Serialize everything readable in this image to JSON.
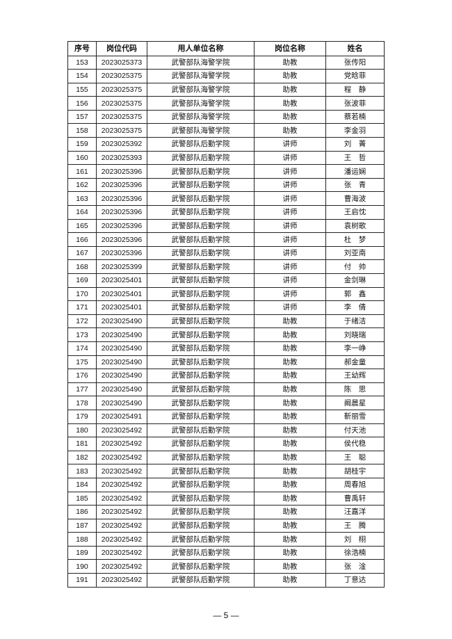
{
  "table": {
    "headers": [
      "序号",
      "岗位代码",
      "用人单位名称",
      "岗位名称",
      "姓名"
    ],
    "rows": [
      [
        "153",
        "2023025373",
        "武警部队海警学院",
        "助教",
        "张传阳"
      ],
      [
        "154",
        "2023025375",
        "武警部队海警学院",
        "助教",
        "党晗菲"
      ],
      [
        "155",
        "2023025375",
        "武警部队海警学院",
        "助教",
        "程　静"
      ],
      [
        "156",
        "2023025375",
        "武警部队海警学院",
        "助教",
        "张波菲"
      ],
      [
        "157",
        "2023025375",
        "武警部队海警学院",
        "助教",
        "蔡若楠"
      ],
      [
        "158",
        "2023025375",
        "武警部队海警学院",
        "助教",
        "李金羽"
      ],
      [
        "159",
        "2023025392",
        "武警部队后勤学院",
        "讲师",
        "刘　菁"
      ],
      [
        "160",
        "2023025393",
        "武警部队后勤学院",
        "讲师",
        "王　哲"
      ],
      [
        "161",
        "2023025396",
        "武警部队后勤学院",
        "讲师",
        "潘运娴"
      ],
      [
        "162",
        "2023025396",
        "武警部队后勤学院",
        "讲师",
        "张　青"
      ],
      [
        "163",
        "2023025396",
        "武警部队后勤学院",
        "讲师",
        "曹海波"
      ],
      [
        "164",
        "2023025396",
        "武警部队后勤学院",
        "讲师",
        "王启忱"
      ],
      [
        "165",
        "2023025396",
        "武警部队后勤学院",
        "讲师",
        "袁树歌"
      ],
      [
        "166",
        "2023025396",
        "武警部队后勤学院",
        "讲师",
        "杜　梦"
      ],
      [
        "167",
        "2023025396",
        "武警部队后勤学院",
        "讲师",
        "刘亚南"
      ],
      [
        "168",
        "2023025399",
        "武警部队后勤学院",
        "讲师",
        "付　帅"
      ],
      [
        "169",
        "2023025401",
        "武警部队后勤学院",
        "讲师",
        "金剑琳"
      ],
      [
        "170",
        "2023025401",
        "武警部队后勤学院",
        "讲师",
        "郭　鑫"
      ],
      [
        "171",
        "2023025401",
        "武警部队后勤学院",
        "讲师",
        "李　倩"
      ],
      [
        "172",
        "2023025490",
        "武警部队后勤学院",
        "助教",
        "于绪洁"
      ],
      [
        "173",
        "2023025490",
        "武警部队后勤学院",
        "助教",
        "刘晓瑞"
      ],
      [
        "174",
        "2023025490",
        "武警部队后勤学院",
        "助教",
        "李一峥"
      ],
      [
        "175",
        "2023025490",
        "武警部队后勤学院",
        "助教",
        "郝金童"
      ],
      [
        "176",
        "2023025490",
        "武警部队后勤学院",
        "助教",
        "王幼辉"
      ],
      [
        "177",
        "2023025490",
        "武警部队后勤学院",
        "助教",
        "陈　思"
      ],
      [
        "178",
        "2023025490",
        "武警部队后勤学院",
        "助教",
        "阚晨星"
      ],
      [
        "179",
        "2023025491",
        "武警部队后勤学院",
        "助教",
        "靳丽雪"
      ],
      [
        "180",
        "2023025492",
        "武警部队后勤学院",
        "助教",
        "付天池"
      ],
      [
        "181",
        "2023025492",
        "武警部队后勤学院",
        "助教",
        "侯代稳"
      ],
      [
        "182",
        "2023025492",
        "武警部队后勤学院",
        "助教",
        "王　聪"
      ],
      [
        "183",
        "2023025492",
        "武警部队后勤学院",
        "助教",
        "胡桂宇"
      ],
      [
        "184",
        "2023025492",
        "武警部队后勤学院",
        "助教",
        "周春旭"
      ],
      [
        "185",
        "2023025492",
        "武警部队后勤学院",
        "助教",
        "曹禹轩"
      ],
      [
        "186",
        "2023025492",
        "武警部队后勤学院",
        "助教",
        "汪嘉洋"
      ],
      [
        "187",
        "2023025492",
        "武警部队后勤学院",
        "助教",
        "王　腾"
      ],
      [
        "188",
        "2023025492",
        "武警部队后勤学院",
        "助教",
        "刘　栩"
      ],
      [
        "189",
        "2023025492",
        "武警部队后勤学院",
        "助教",
        "徐浩楠"
      ],
      [
        "190",
        "2023025492",
        "武警部队后勤学院",
        "助教",
        "张　淦"
      ],
      [
        "191",
        "2023025492",
        "武警部队后勤学院",
        "助教",
        "丁意达"
      ]
    ]
  },
  "footer": {
    "page": "— 5 —"
  }
}
